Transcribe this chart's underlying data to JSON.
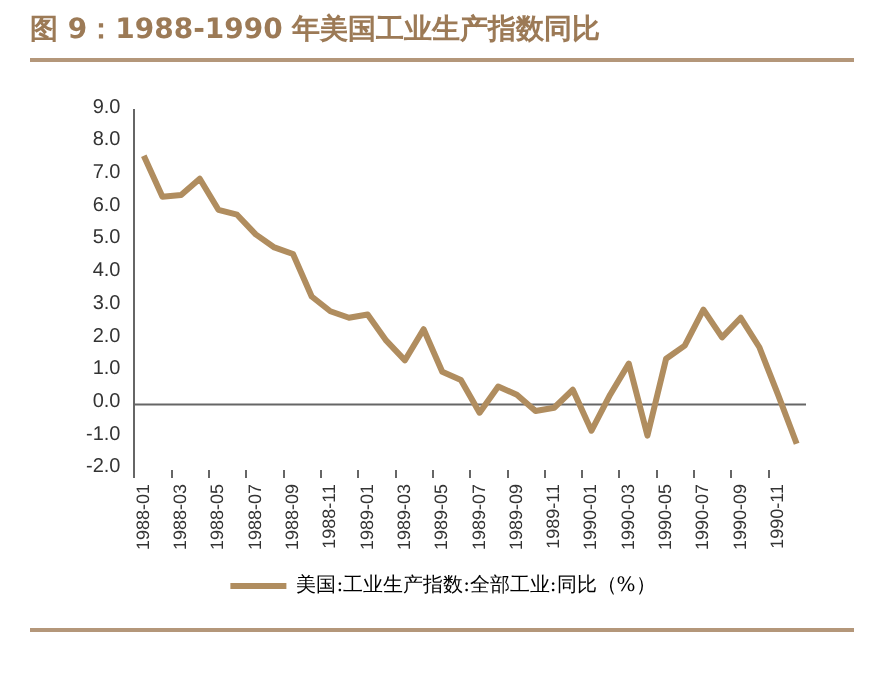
{
  "chart_data": {
    "type": "line",
    "title": "图 9：1988-1990 年美国工业生产指数同比",
    "categories": [
      "1988-01",
      null,
      "1988-03",
      null,
      "1988-05",
      null,
      "1988-07",
      null,
      "1988-09",
      null,
      "1988-11",
      null,
      "1989-01",
      null,
      "1989-03",
      null,
      "1989-05",
      null,
      "1989-07",
      null,
      "1989-09",
      null,
      "1989-11",
      null,
      "1990-01",
      null,
      "1990-03",
      null,
      "1990-05",
      null,
      "1990-07",
      null,
      "1990-09",
      null,
      "1990-11",
      null
    ],
    "series": [
      {
        "name": "美国:工业生产指数:全部工业:同比（%）",
        "color": "#b08d5f",
        "values": [
          7.6,
          6.35,
          6.4,
          6.9,
          5.95,
          5.8,
          5.2,
          4.8,
          4.6,
          3.3,
          2.85,
          2.65,
          2.75,
          1.95,
          1.35,
          2.3,
          1.0,
          0.75,
          -0.25,
          0.55,
          0.3,
          -0.2,
          -0.1,
          0.45,
          -0.8,
          0.3,
          1.25,
          -0.95,
          1.4,
          1.8,
          2.9,
          2.05,
          2.65,
          1.75,
          0.3,
          -1.2
        ]
      }
    ],
    "ref_lines": [
      {
        "axis": "y",
        "value": 0
      }
    ],
    "ylim": [
      -2,
      9
    ],
    "yticks": [
      {
        "value": -2,
        "label": "-2.0"
      },
      {
        "value": -1,
        "label": "-1.0"
      },
      {
        "value": 0,
        "label": "0.0"
      },
      {
        "value": 1,
        "label": "1.0"
      },
      {
        "value": 2,
        "label": "2.0"
      },
      {
        "value": 3,
        "label": "3.0"
      },
      {
        "value": 4,
        "label": "4.0"
      },
      {
        "value": 5,
        "label": "5.0"
      },
      {
        "value": 6,
        "label": "6.0"
      },
      {
        "value": 7,
        "label": "7.0"
      },
      {
        "value": 8,
        "label": "8.0"
      },
      {
        "value": 9,
        "label": "9.0"
      }
    ],
    "grid": false,
    "legend": "bottom",
    "marker": "none",
    "line_style": "solid"
  }
}
